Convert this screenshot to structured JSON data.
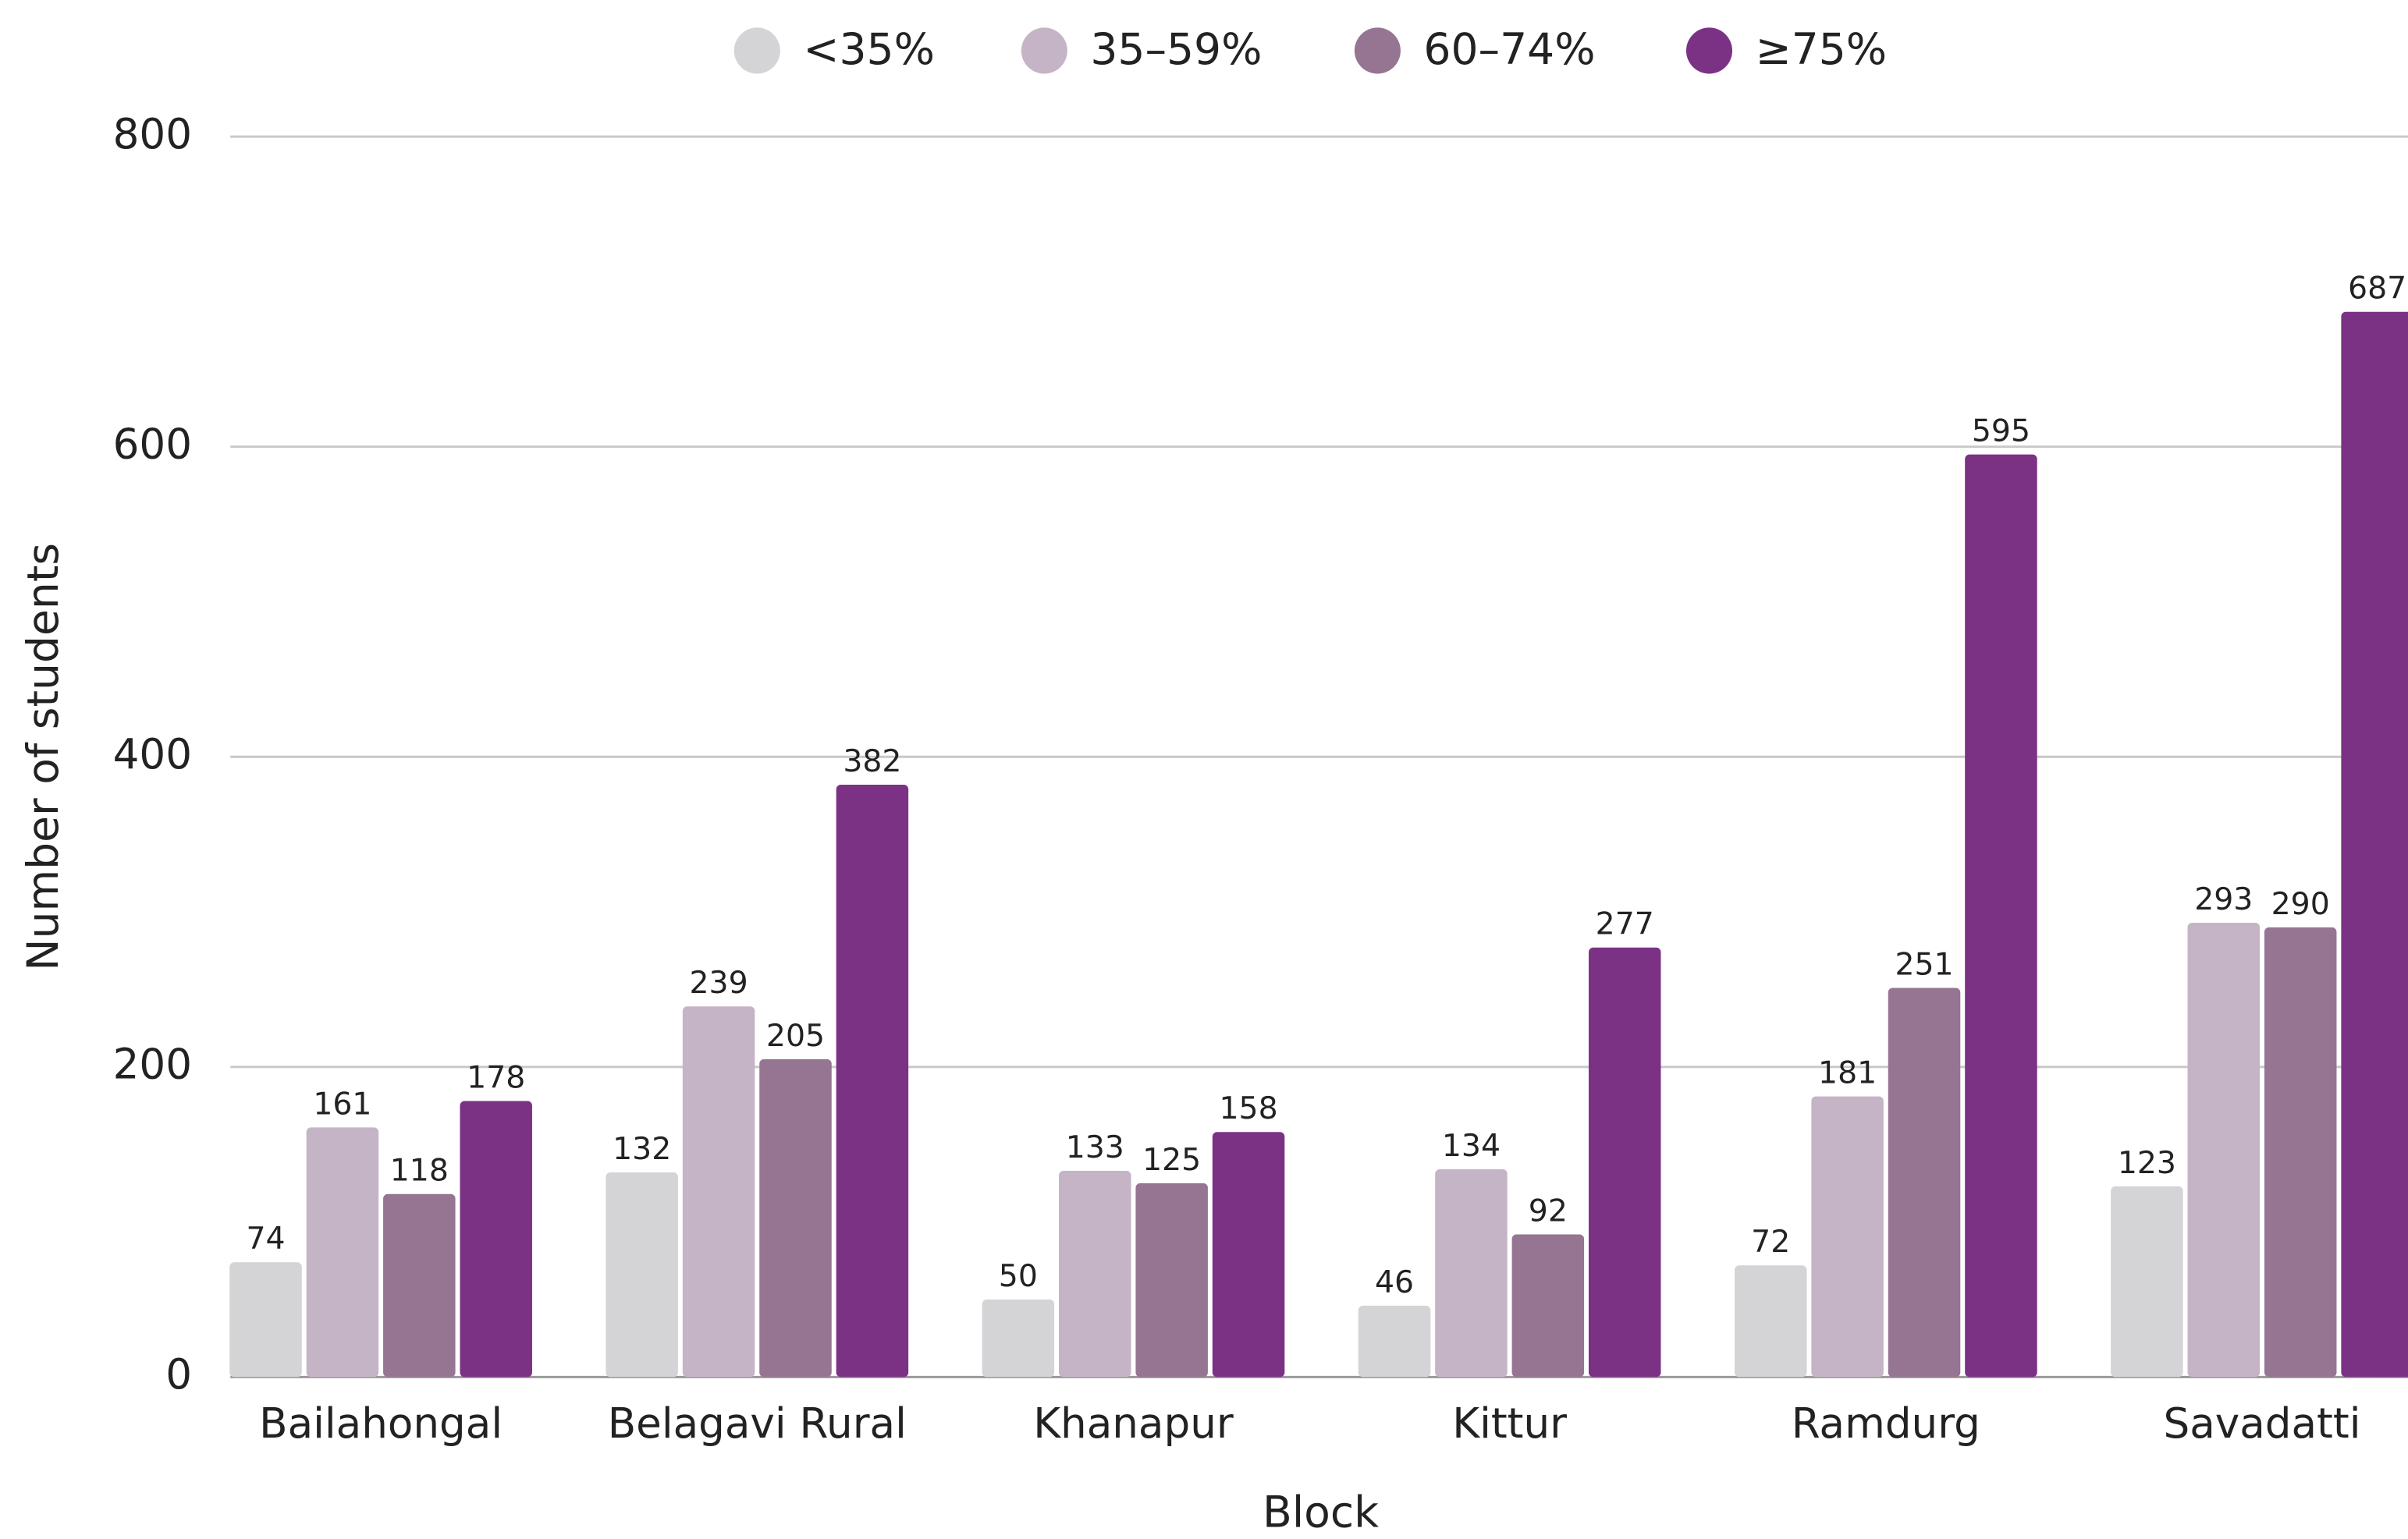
{
  "chart_data": {
    "type": "bar",
    "categories": [
      "Bailahongal",
      "Belagavi Rural",
      "Khanapur",
      "Kittur",
      "Ramdurg",
      "Savadatti"
    ],
    "series": [
      {
        "name": "<35%",
        "color": "#d4d4d6",
        "values": [
          74,
          132,
          50,
          46,
          72,
          123
        ]
      },
      {
        "name": "35–59%",
        "color": "#c5b4c6",
        "values": [
          161,
          239,
          133,
          134,
          181,
          293
        ]
      },
      {
        "name": "60–74%",
        "color": "#957592",
        "values": [
          118,
          205,
          125,
          92,
          251,
          290
        ]
      },
      {
        "name": "≥75%",
        "color": "#7b3285",
        "values": [
          178,
          382,
          158,
          277,
          595,
          687
        ]
      }
    ],
    "xlabel": "Block",
    "ylabel": "Number of students",
    "ylim": [
      0,
      800
    ],
    "yticks": [
      0,
      200,
      400,
      600,
      800
    ],
    "grid": true,
    "legend": "top"
  }
}
